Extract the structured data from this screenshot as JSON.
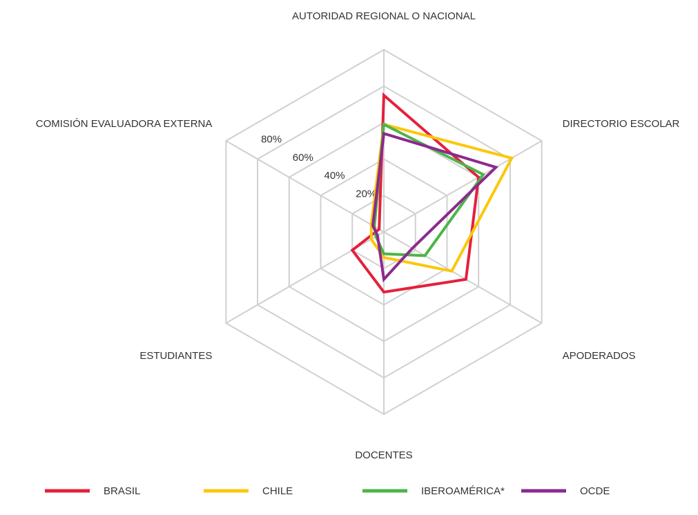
{
  "chart_data": {
    "type": "radar",
    "categories": [
      "AUTORIDAD REGIONAL O NACIONAL",
      "DIRECTORIO ESCOLAR",
      "APODERADOS",
      "DOCENTES",
      "ESTUDIANTES",
      "COMISIÓN EVALUADORA EXTERNA"
    ],
    "series": [
      {
        "name": "BRASIL",
        "color": "#e4203c",
        "values": [
          75,
          60,
          52,
          33,
          20,
          3
        ]
      },
      {
        "name": "CHILE",
        "color": "#fcc70a",
        "values": [
          59,
          81,
          43,
          14,
          8,
          8
        ]
      },
      {
        "name": "IBEROAMÉRICA*",
        "color": "#4cb548",
        "values": [
          59,
          63,
          26,
          12,
          5,
          6
        ]
      },
      {
        "name": "OCDE",
        "color": "#8c2a8d",
        "values": [
          54,
          71,
          18,
          26,
          4,
          7
        ]
      }
    ],
    "ylim": [
      0,
      100
    ],
    "yticks": [
      {
        "value": 20,
        "label": "20%"
      },
      {
        "value": 40,
        "label": "40%"
      },
      {
        "value": 60,
        "label": "60%"
      },
      {
        "value": 80,
        "label": "80%"
      }
    ],
    "grid": true,
    "legend": "bottom"
  }
}
